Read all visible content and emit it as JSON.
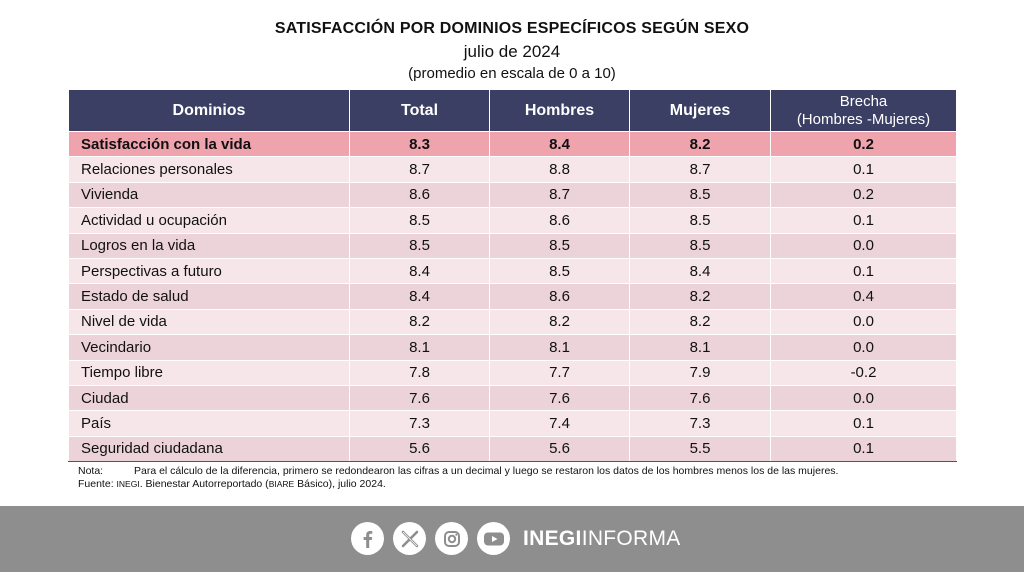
{
  "title": {
    "main": "SATISFACCIÓN POR DOMINIOS ESPECÍFICOS SEGÚN SEXO",
    "date": "julio de 2024",
    "scale": "(promedio en escala de 0 a 10)"
  },
  "table": {
    "headers": {
      "dominios": "Dominios",
      "total": "Total",
      "hombres": "Hombres",
      "mujeres": "Mujeres",
      "brecha_line1": "Brecha",
      "brecha_line2": "(Hombres -Mujeres)"
    },
    "rows": [
      {
        "dominio": "Satisfacción con la vida",
        "total": "8.3",
        "hombres": "8.4",
        "mujeres": "8.2",
        "brecha": "0.2"
      },
      {
        "dominio": "Relaciones personales",
        "total": "8.7",
        "hombres": "8.8",
        "mujeres": "8.7",
        "brecha": "0.1"
      },
      {
        "dominio": "Vivienda",
        "total": "8.6",
        "hombres": "8.7",
        "mujeres": "8.5",
        "brecha": "0.2"
      },
      {
        "dominio": "Actividad u ocupación",
        "total": "8.5",
        "hombres": "8.6",
        "mujeres": "8.5",
        "brecha": "0.1"
      },
      {
        "dominio": "Logros en la vida",
        "total": "8.5",
        "hombres": "8.5",
        "mujeres": "8.5",
        "brecha": "0.0"
      },
      {
        "dominio": "Perspectivas a futuro",
        "total": "8.4",
        "hombres": "8.5",
        "mujeres": "8.4",
        "brecha": "0.1"
      },
      {
        "dominio": "Estado de salud",
        "total": "8.4",
        "hombres": "8.6",
        "mujeres": "8.2",
        "brecha": "0.4"
      },
      {
        "dominio": "Nivel de vida",
        "total": "8.2",
        "hombres": "8.2",
        "mujeres": "8.2",
        "brecha": "0.0"
      },
      {
        "dominio": "Vecindario",
        "total": "8.1",
        "hombres": "8.1",
        "mujeres": "8.1",
        "brecha": "0.0"
      },
      {
        "dominio": "Tiempo libre",
        "total": "7.8",
        "hombres": "7.7",
        "mujeres": "7.9",
        "brecha": "-0.2"
      },
      {
        "dominio": "Ciudad",
        "total": "7.6",
        "hombres": "7.6",
        "mujeres": "7.6",
        "brecha": "0.0"
      },
      {
        "dominio": "País",
        "total": "7.3",
        "hombres": "7.4",
        "mujeres": "7.3",
        "brecha": "0.1"
      },
      {
        "dominio": "Seguridad ciudadana",
        "total": "5.6",
        "hombres": "5.6",
        "mujeres": "5.5",
        "brecha": "0.1"
      }
    ]
  },
  "notes": {
    "nota_label": "Nota:",
    "nota_text": "Para el cálculo de la diferencia, primero se redondearon las cifras a un decimal y luego se restaron los datos de los hombres menos los de las mujeres.",
    "fuente_label": "Fuente:",
    "fuente_org": "INEGI",
    "fuente_mid": ". Bienestar Autorreportado (",
    "fuente_abbr": "BIARE",
    "fuente_end": " Básico), julio 2024."
  },
  "footer": {
    "brand_bold": "INEGI",
    "brand_light": "INFORMA",
    "icons": [
      "facebook-icon",
      "x-icon",
      "instagram-icon",
      "youtube-icon"
    ]
  },
  "colors": {
    "header_bg": "#3a3f63",
    "highlight_row": "#eea3ad",
    "row_light": "#f6e6ea",
    "row_dark": "#ecd3da",
    "footer_bg": "#8e8e8e"
  }
}
